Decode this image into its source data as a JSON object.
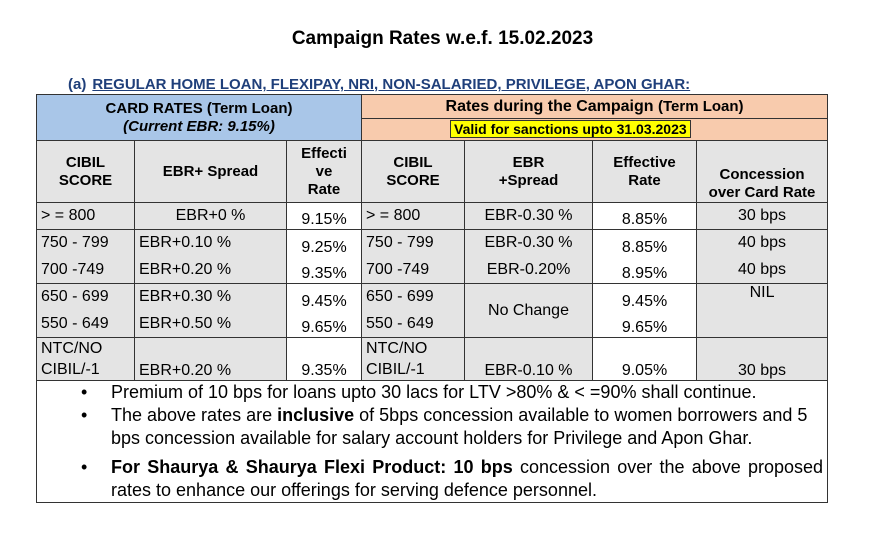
{
  "title": "Campaign Rates w.e.f. 15.02.2023",
  "subtitle": {
    "prefix": "(a)",
    "text": "REGULAR HOME LOAN, FLEXIPAY, NRI, NON-SALARIED, PRIVILEGE, APON GHAR:"
  },
  "card_rates": {
    "heading": "CARD RATES (Term Loan)",
    "ebr_note": "(Current EBR: 9.15%)"
  },
  "campaign": {
    "heading": "Rates during the Campaign",
    "heading_suffix": "(Term Loan)",
    "validity": "Valid for sanctions upto 31.03.2023"
  },
  "columns": {
    "cibil_left_1": "CIBIL",
    "cibil_left_2": "SCORE",
    "ebr_spread_left": "EBR+ Spread",
    "eff_1": "Effecti",
    "eff_2": "ve",
    "eff_3": "Rate",
    "cibil_right_1": "CIBIL",
    "cibil_right_2": "SCORE",
    "ebr_right_1": "EBR",
    "ebr_right_2": "+Spread",
    "eff_right_1": "Effective",
    "eff_right_2": "Rate",
    "conc_1": "Concession",
    "conc_2": "over Card Rate"
  },
  "rows": {
    "r1": {
      "score": "> = 800",
      "spread": "EBR+0 %",
      "rate": "9.15%",
      "score2": "> = 800",
      "spread2": "EBR-0.30 %",
      "rate2": "8.85%",
      "conc": "30 bps"
    },
    "r2": {
      "score": "750 - 799",
      "spread": "EBR+0.10 %",
      "rate": "9.25%",
      "score2": "750 - 799",
      "spread2": "EBR-0.30 %",
      "rate2": "8.85%",
      "conc": "40 bps"
    },
    "r3": {
      "score": "700 -749",
      "spread": "EBR+0.20 %",
      "rate": "9.35%",
      "score2": "700 -749",
      "spread2": "EBR-0.20%",
      "rate2": "8.95%",
      "conc": "40 bps"
    },
    "r4": {
      "score": "650 - 699",
      "spread": "EBR+0.30 %",
      "rate": "9.45%",
      "score2": "650 - 699",
      "rate2": "9.45%",
      "conc": "NIL"
    },
    "r5": {
      "score": "550 - 649",
      "spread": "EBR+0.50 %",
      "rate": "9.65%",
      "score2": "550 - 649",
      "rate2": "9.65%"
    },
    "r45_spread2": "No Change",
    "r6": {
      "score_1": "NTC/NO",
      "score_2": "CIBIL/-1",
      "spread": "EBR+0.20 %",
      "rate": "9.35%",
      "score2_1": "NTC/NO",
      "score2_2": "CIBIL/-1",
      "spread2": "EBR-0.10 %",
      "rate2": "9.05%",
      "conc": "30 bps"
    }
  },
  "notes": {
    "bullet": "•",
    "n1": "Premium of 10 bps for loans upto 30 lacs for LTV >80% & < =90% shall continue.",
    "n2_a": "The above rates are ",
    "n2_b": "inclusive",
    "n2_c": " of 5bps concession available to women borrowers and 5 bps concession available for salary account holders for Privilege and Apon Ghar.",
    "n3_a": "For Shaurya & Shaurya Flexi Product: 10 bps",
    "n3_b": " concession over the above proposed rates to enhance our offerings for serving defence personnel."
  }
}
